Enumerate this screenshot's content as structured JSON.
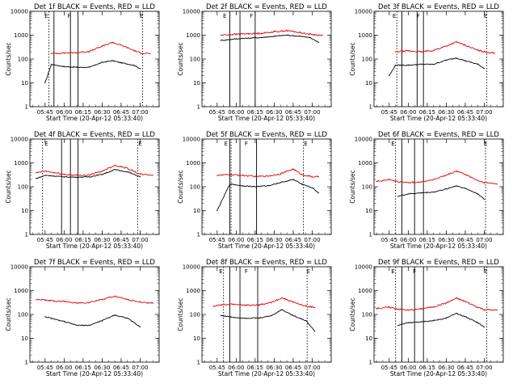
{
  "colors": {
    "events": "#000000",
    "lld": "#e00000",
    "frame": "#000000",
    "background": "#ffffff"
  },
  "x_tick_labels": [
    "05:45",
    "06:00",
    "06:15",
    "06:30",
    "06:45",
    "07:00"
  ],
  "y_tick_labels": [
    "1",
    "10",
    "100",
    "1000",
    "10000"
  ],
  "xlabel": "Start Time (20-Apr-12 05:33:40)",
  "ylabel": "Counts/sec",
  "chart_data": [
    {
      "type": "line",
      "title": "Det 1f BLACK = Events, RED = LLD",
      "xlabel": "Start Time (20-Apr-12 05:33:40)",
      "ylabel": "Counts/sec",
      "xlim": [
        "05:33",
        "07:15"
      ],
      "ylim": [
        1,
        10000
      ],
      "y_scale": "log",
      "x": [
        "05:45",
        "05:50",
        "06:00",
        "06:10",
        "06:20",
        "06:30",
        "06:38",
        "06:45",
        "06:55",
        "07:00",
        "07:08"
      ],
      "series": [
        {
          "name": "Events",
          "color": "black",
          "values": [
            10,
            60,
            48,
            45,
            45,
            72,
            85,
            70,
            55,
            40,
            null
          ]
        },
        {
          "name": "LLD",
          "color": "red",
          "values": [
            null,
            170,
            180,
            185,
            210,
            340,
            500,
            380,
            230,
            180,
            170
          ]
        }
      ],
      "vlines_solid": [
        "05:52",
        "06:05",
        "06:11"
      ],
      "vlines_dotted": [
        "05:48",
        "07:02"
      ],
      "markers": [
        {
          "label": "E",
          "x": "05:46"
        },
        {
          "label": "F",
          "x": "06:04"
        },
        {
          "label": "E",
          "x": "07:01"
        }
      ],
      "grid": false
    },
    {
      "type": "line",
      "title": "Det 2f BLACK = Events, RED = LLD",
      "xlabel": "Start Time (20-Apr-12 05:33:40)",
      "ylabel": "Counts/sec",
      "xlim": [
        "05:33",
        "07:15"
      ],
      "ylim": [
        1,
        10000
      ],
      "y_scale": "log",
      "x": [
        "05:48",
        "06:00",
        "06:10",
        "06:20",
        "06:30",
        "06:40",
        "06:50",
        "06:58",
        "07:05",
        "07:08"
      ],
      "series": [
        {
          "name": "Events",
          "color": "black",
          "values": [
            600,
            700,
            750,
            800,
            900,
            1000,
            900,
            800,
            500,
            null
          ]
        },
        {
          "name": "LLD",
          "color": "red",
          "values": [
            1000,
            1100,
            1150,
            1200,
            1400,
            1550,
            1300,
            1100,
            1000,
            1000
          ]
        }
      ],
      "vlines_solid": [
        "05:55",
        "06:03",
        "06:15"
      ],
      "vlines_dotted": [],
      "markers": [
        {
          "label": "E",
          "x": "05:51"
        },
        {
          "label": "F",
          "x": "06:12"
        }
      ],
      "grid": false
    },
    {
      "type": "line",
      "title": "Det 3f BLACK = Events, RED = LLD",
      "xlabel": "Start Time (20-Apr-12 05:33:40)",
      "ylabel": "Counts/sec",
      "xlim": [
        "05:33",
        "07:15"
      ],
      "ylim": [
        1,
        10000
      ],
      "y_scale": "log",
      "x": [
        "05:45",
        "05:50",
        "06:00",
        "06:10",
        "06:20",
        "06:30",
        "06:38",
        "06:45",
        "06:55",
        "07:00",
        "07:08"
      ],
      "series": [
        {
          "name": "Events",
          "color": "black",
          "values": [
            20,
            55,
            55,
            60,
            60,
            90,
            110,
            85,
            60,
            40,
            null
          ]
        },
        {
          "name": "LLD",
          "color": "red",
          "values": [
            null,
            200,
            220,
            200,
            230,
            350,
            520,
            380,
            230,
            200,
            180
          ]
        }
      ],
      "vlines_solid": [
        "05:55",
        "06:07",
        "06:12"
      ],
      "vlines_dotted": [
        "05:51",
        "07:02"
      ],
      "markers": [
        {
          "label": "E",
          "x": "05:49"
        },
        {
          "label": "F",
          "x": "06:08"
        },
        {
          "label": "E",
          "x": "07:01"
        }
      ],
      "grid": false
    },
    {
      "type": "line",
      "title": "Det 4f BLACK = Events, RED = LLD",
      "xlabel": "Start Time (20-Apr-12 05:33:40)",
      "ylabel": "Counts/sec",
      "xlim": [
        "05:33",
        "07:15"
      ],
      "ylim": [
        1,
        10000
      ],
      "y_scale": "log",
      "x": [
        "05:38",
        "05:45",
        "06:00",
        "06:10",
        "06:20",
        "06:30",
        "06:40",
        "06:50",
        "07:00",
        "07:10"
      ],
      "series": [
        {
          "name": "Events",
          "color": "black",
          "values": [
            220,
            300,
            260,
            250,
            260,
            330,
            520,
            420,
            260,
            null
          ]
        },
        {
          "name": "LLD",
          "color": "red",
          "values": [
            380,
            450,
            330,
            300,
            310,
            450,
            800,
            600,
            330,
            310
          ]
        }
      ],
      "vlines_solid": [
        "05:58",
        "06:05",
        "06:11"
      ],
      "vlines_dotted": [
        "05:43",
        "06:58"
      ],
      "markers": [
        {
          "label": "E",
          "x": "05:46"
        },
        {
          "label": "E",
          "x": "07:00"
        }
      ],
      "grid": false
    },
    {
      "type": "line",
      "title": "Det 5f BLACK = Events, RED = LLD",
      "xlabel": "Start Time (20-Apr-12 05:33:40)",
      "ylabel": "Counts/sec",
      "xlim": [
        "05:33",
        "07:15"
      ],
      "ylim": [
        1,
        10000
      ],
      "y_scale": "log",
      "x": [
        "05:45",
        "05:55",
        "06:05",
        "06:15",
        "06:25",
        "06:35",
        "06:45",
        "06:52",
        "07:00",
        "07:05"
      ],
      "series": [
        {
          "name": "Events",
          "color": "black",
          "values": [
            10,
            130,
            110,
            100,
            110,
            150,
            200,
            130,
            90,
            55
          ]
        },
        {
          "name": "LLD",
          "color": "red",
          "values": [
            300,
            320,
            300,
            270,
            280,
            350,
            550,
            320,
            260,
            260
          ]
        }
      ],
      "vlines_solid": [
        "05:55",
        "06:03",
        "06:16"
      ],
      "vlines_dotted": [
        "05:56",
        "06:53"
      ],
      "markers": [
        {
          "label": "E",
          "x": "05:52"
        },
        {
          "label": "F",
          "x": "06:08"
        },
        {
          "label": "E",
          "x": "06:55"
        }
      ],
      "grid": false
    },
    {
      "type": "line",
      "title": "Det 6f BLACK = Events, RED = LLD",
      "xlabel": "Start Time (20-Apr-12 05:33:40)",
      "ylabel": "Counts/sec",
      "xlim": [
        "05:33",
        "07:15"
      ],
      "ylim": [
        1,
        10000
      ],
      "y_scale": "log",
      "x": [
        "05:35",
        "05:45",
        "05:52",
        "06:00",
        "06:10",
        "06:20",
        "06:30",
        "06:38",
        "06:45",
        "06:55",
        "07:00",
        "07:10"
      ],
      "series": [
        {
          "name": "Events",
          "color": "black",
          "values": [
            null,
            null,
            40,
            50,
            55,
            60,
            80,
            110,
            85,
            50,
            30,
            null
          ]
        },
        {
          "name": "LLD",
          "color": "red",
          "values": [
            170,
            200,
            160,
            150,
            160,
            200,
            300,
            450,
            330,
            180,
            150,
            130
          ]
        }
      ],
      "vlines_solid": [
        "05:55",
        "06:05",
        "06:12"
      ],
      "vlines_dotted": [
        "05:50",
        "07:01"
      ],
      "markers": [
        {
          "label": "E",
          "x": "05:48"
        },
        {
          "label": "E",
          "x": "07:01"
        }
      ],
      "grid": false
    },
    {
      "type": "line",
      "title": "Det 7f BLACK = Events, RED = LLD",
      "xlabel": "Start Time (20-Apr-12 05:33:40)",
      "ylabel": "Counts/sec",
      "xlim": [
        "05:33",
        "07:15"
      ],
      "ylim": [
        1,
        10000
      ],
      "y_scale": "log",
      "x": [
        "05:38",
        "05:45",
        "06:00",
        "06:10",
        "06:20",
        "06:30",
        "06:40",
        "06:50",
        "07:00",
        "07:10"
      ],
      "series": [
        {
          "name": "Events",
          "color": "black",
          "values": [
            null,
            80,
            50,
            35,
            35,
            55,
            95,
            70,
            30,
            null
          ]
        },
        {
          "name": "LLD",
          "color": "red",
          "values": [
            420,
            400,
            350,
            300,
            320,
            430,
            580,
            420,
            330,
            300
          ]
        }
      ],
      "vlines_solid": [],
      "vlines_dotted": [],
      "markers": [],
      "grid": false
    },
    {
      "type": "line",
      "title": "Det 8f BLACK = Events, RED = LLD",
      "xlabel": "Start Time (20-Apr-12 05:33:40)",
      "ylabel": "Counts/sec",
      "xlim": [
        "05:33",
        "07:15"
      ],
      "ylim": [
        1,
        10000
      ],
      "y_scale": "log",
      "x": [
        "05:42",
        "05:48",
        "05:58",
        "06:08",
        "06:18",
        "06:28",
        "06:36",
        "06:45",
        "06:55",
        "07:02"
      ],
      "series": [
        {
          "name": "Events",
          "color": "black",
          "values": [
            null,
            90,
            75,
            70,
            70,
            90,
            160,
            90,
            55,
            20
          ]
        },
        {
          "name": "LLD",
          "color": "red",
          "values": [
            220,
            250,
            270,
            240,
            250,
            320,
            500,
            330,
            220,
            200
          ]
        }
      ],
      "vlines_solid": [
        "05:55",
        "06:03",
        "06:17"
      ],
      "vlines_dotted": [
        "05:50",
        "06:56"
      ],
      "markers": [
        {
          "label": "E",
          "x": "05:48"
        },
        {
          "label": "F",
          "x": "06:08"
        },
        {
          "label": "E",
          "x": "06:57"
        }
      ],
      "grid": false
    },
    {
      "type": "line",
      "title": "Det 9f BLACK = Events, RED = LLD",
      "xlabel": "Start Time (20-Apr-12 05:33:40)",
      "ylabel": "Counts/sec",
      "xlim": [
        "05:33",
        "07:15"
      ],
      "ylim": [
        1,
        10000
      ],
      "y_scale": "log",
      "x": [
        "05:35",
        "05:45",
        "05:52",
        "06:00",
        "06:10",
        "06:20",
        "06:30",
        "06:38",
        "06:45",
        "06:55",
        "07:00",
        "07:10"
      ],
      "series": [
        {
          "name": "Events",
          "color": "black",
          "values": [
            null,
            null,
            35,
            45,
            50,
            55,
            70,
            110,
            80,
            45,
            30,
            null
          ]
        },
        {
          "name": "LLD",
          "color": "red",
          "values": [
            180,
            200,
            170,
            150,
            170,
            210,
            300,
            480,
            350,
            200,
            160,
            150
          ]
        }
      ],
      "vlines_solid": [
        "05:55",
        "06:05",
        "06:12"
      ],
      "vlines_dotted": [
        "05:50",
        "07:02"
      ],
      "markers": [
        {
          "label": "E",
          "x": "05:48"
        },
        {
          "label": "F",
          "x": "06:05"
        },
        {
          "label": "E",
          "x": "07:01"
        }
      ],
      "grid": false
    }
  ]
}
